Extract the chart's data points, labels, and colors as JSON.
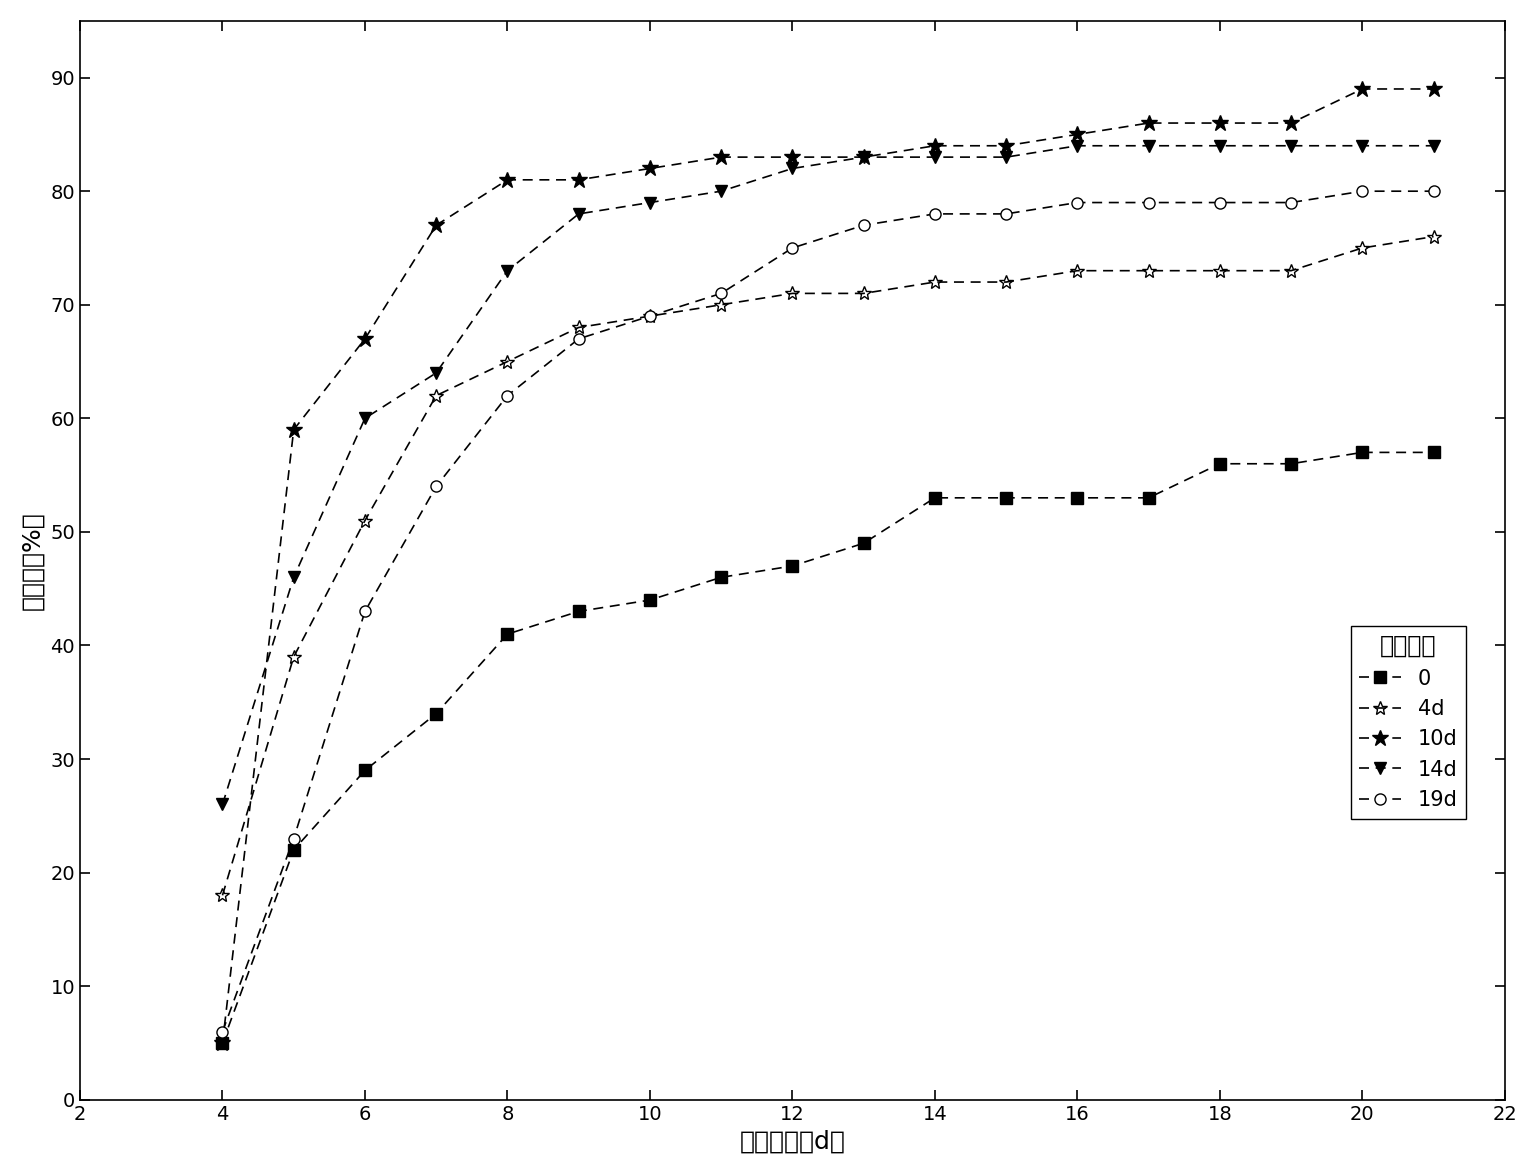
{
  "title": "",
  "xlabel": "发芽时间（d）",
  "ylabel": "发芽率（%）",
  "legend_title": "浸种时间",
  "xlim": [
    2,
    22
  ],
  "ylim": [
    0,
    95
  ],
  "xticks": [
    2,
    4,
    6,
    8,
    10,
    12,
    14,
    16,
    18,
    20,
    22
  ],
  "yticks": [
    0,
    10,
    20,
    30,
    40,
    50,
    60,
    70,
    80,
    90
  ],
  "series": [
    {
      "label": "0",
      "x": [
        4,
        5,
        6,
        7,
        8,
        9,
        10,
        11,
        12,
        13,
        14,
        15,
        16,
        17,
        18,
        19,
        20,
        21
      ],
      "y": [
        5,
        22,
        29,
        34,
        41,
        43,
        44,
        46,
        47,
        49,
        53,
        53,
        53,
        53,
        56,
        56,
        57,
        57
      ],
      "marker": "s",
      "marker_filled": true,
      "markersize": 8
    },
    {
      "label": "4d",
      "x": [
        4,
        5,
        6,
        7,
        8,
        9,
        10,
        11,
        12,
        13,
        14,
        15,
        16,
        17,
        18,
        19,
        20,
        21
      ],
      "y": [
        18,
        39,
        51,
        62,
        65,
        68,
        69,
        70,
        71,
        71,
        72,
        72,
        73,
        73,
        73,
        73,
        75,
        76
      ],
      "marker": "x_star",
      "marker_filled": false,
      "markersize": 10
    },
    {
      "label": "10d",
      "x": [
        4,
        5,
        6,
        7,
        8,
        9,
        10,
        11,
        12,
        13,
        14,
        15,
        16,
        17,
        18,
        19,
        20,
        21
      ],
      "y": [
        5,
        59,
        67,
        77,
        81,
        81,
        82,
        83,
        83,
        83,
        84,
        84,
        85,
        86,
        86,
        86,
        89,
        89
      ],
      "marker": "star_filled",
      "marker_filled": true,
      "markersize": 12
    },
    {
      "label": "14d",
      "x": [
        4,
        5,
        6,
        7,
        8,
        9,
        10,
        11,
        12,
        13,
        14,
        15,
        16,
        17,
        18,
        19,
        20,
        21
      ],
      "y": [
        26,
        46,
        60,
        64,
        73,
        78,
        79,
        80,
        82,
        83,
        83,
        83,
        84,
        84,
        84,
        84,
        84,
        84
      ],
      "marker": "v",
      "marker_filled": true,
      "markersize": 9
    },
    {
      "label": "19d",
      "x": [
        4,
        5,
        6,
        7,
        8,
        9,
        10,
        11,
        12,
        13,
        14,
        15,
        16,
        17,
        18,
        19,
        20,
        21
      ],
      "y": [
        6,
        23,
        43,
        54,
        62,
        67,
        69,
        71,
        75,
        77,
        78,
        78,
        79,
        79,
        79,
        79,
        80,
        80
      ],
      "marker": "o",
      "marker_filled": false,
      "markersize": 8
    }
  ],
  "line_color": "#000000",
  "background_color": "#ffffff",
  "font_size_axis_label": 18,
  "font_size_tick": 14,
  "font_size_legend": 15,
  "linewidth": 1.2,
  "dash_pattern": [
    6,
    4
  ]
}
